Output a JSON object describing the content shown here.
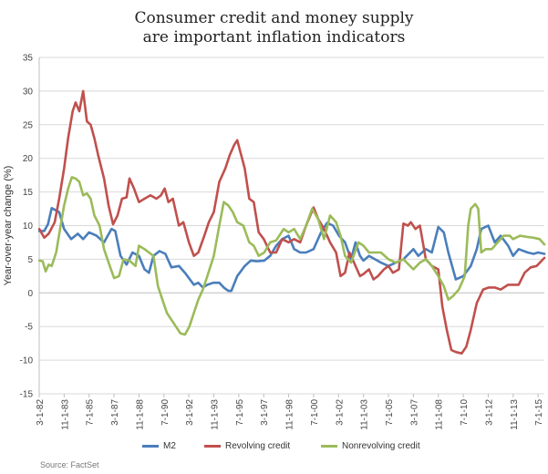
{
  "chart_data": {
    "type": "line",
    "title": [
      "Consumer credit and money supply",
      "are important inflation indicators"
    ],
    "ylabel": "Year-over-year change (%)",
    "xlabel": "",
    "ylim": [
      -15,
      35
    ],
    "yticks": [
      -15,
      -10,
      -5,
      0,
      5,
      10,
      15,
      20,
      25,
      30,
      35
    ],
    "x_tick_labels": [
      "3-1-82",
      "11-1-83",
      "7-1-85",
      "3-1-87",
      "11-1-88",
      "7-1-90",
      "3-1-92",
      "11-1-93",
      "7-1-95",
      "3-1-97",
      "11-1-98",
      "7-1-00",
      "3-1-02",
      "11-1-03",
      "7-1-05",
      "3-1-07",
      "11-1-08",
      "7-1-10",
      "3-1-12",
      "11-1-13",
      "7-1-15"
    ],
    "x_range": [
      "3-1-82",
      "12-1-15"
    ],
    "grid": "horizontal",
    "legend_position": "bottom",
    "source": "Source: FactSet",
    "series": [
      {
        "name": "M2",
        "color": "#4a7ebb",
        "points": [
          [
            1982.17,
            9.2
          ],
          [
            1982.5,
            9.2
          ],
          [
            1982.75,
            10.2
          ],
          [
            1983.0,
            12.6
          ],
          [
            1983.5,
            12.0
          ],
          [
            1983.83,
            9.5
          ],
          [
            1984.3,
            8.0
          ],
          [
            1984.75,
            8.8
          ],
          [
            1985.1,
            8.0
          ],
          [
            1985.5,
            9.0
          ],
          [
            1986.0,
            8.5
          ],
          [
            1986.5,
            7.5
          ],
          [
            1987.0,
            9.5
          ],
          [
            1987.25,
            9.2
          ],
          [
            1987.6,
            5.5
          ],
          [
            1988.0,
            4.2
          ],
          [
            1988.4,
            6.0
          ],
          [
            1988.83,
            5.5
          ],
          [
            1989.2,
            3.5
          ],
          [
            1989.5,
            3.0
          ],
          [
            1989.8,
            5.5
          ],
          [
            1990.2,
            6.2
          ],
          [
            1990.6,
            5.8
          ],
          [
            1991.0,
            3.8
          ],
          [
            1991.5,
            4.0
          ],
          [
            1991.9,
            3.0
          ],
          [
            1992.5,
            1.2
          ],
          [
            1992.8,
            1.5
          ],
          [
            1993.1,
            0.8
          ],
          [
            1993.4,
            1.2
          ],
          [
            1993.8,
            1.5
          ],
          [
            1994.2,
            1.5
          ],
          [
            1994.5,
            0.8
          ],
          [
            1994.8,
            0.3
          ],
          [
            1995.0,
            0.3
          ],
          [
            1995.4,
            2.5
          ],
          [
            1995.9,
            4.0
          ],
          [
            1996.3,
            4.8
          ],
          [
            1996.7,
            4.7
          ],
          [
            1997.2,
            4.8
          ],
          [
            1997.6,
            5.5
          ],
          [
            1998.0,
            7.0
          ],
          [
            1998.4,
            8.0
          ],
          [
            1998.83,
            8.5
          ],
          [
            1999.2,
            6.5
          ],
          [
            1999.6,
            6.0
          ],
          [
            2000.0,
            6.0
          ],
          [
            2000.5,
            6.5
          ],
          [
            2001.0,
            9.0
          ],
          [
            2001.4,
            10.4
          ],
          [
            2001.8,
            10.0
          ],
          [
            2002.2,
            8.5
          ],
          [
            2002.6,
            7.5
          ],
          [
            2003.0,
            5.0
          ],
          [
            2003.3,
            7.5
          ],
          [
            2003.6,
            5.5
          ],
          [
            2003.83,
            4.8
          ],
          [
            2004.2,
            5.5
          ],
          [
            2004.6,
            5.0
          ],
          [
            2005.0,
            4.5
          ],
          [
            2005.5,
            4.0
          ],
          [
            2006.0,
            4.5
          ],
          [
            2006.5,
            5.0
          ],
          [
            2007.17,
            6.5
          ],
          [
            2007.5,
            5.5
          ],
          [
            2008.0,
            6.5
          ],
          [
            2008.4,
            6.0
          ],
          [
            2008.83,
            9.8
          ],
          [
            2009.2,
            9.0
          ],
          [
            2009.5,
            6.0
          ],
          [
            2010.0,
            2.0
          ],
          [
            2010.5,
            2.5
          ],
          [
            2011.0,
            4.0
          ],
          [
            2011.4,
            6.5
          ],
          [
            2011.7,
            9.5
          ],
          [
            2012.17,
            10.0
          ],
          [
            2012.6,
            7.5
          ],
          [
            2013.0,
            8.5
          ],
          [
            2013.5,
            7.0
          ],
          [
            2013.83,
            5.5
          ],
          [
            2014.2,
            6.5
          ],
          [
            2014.8,
            6.0
          ],
          [
            2015.2,
            5.8
          ],
          [
            2015.5,
            6.0
          ],
          [
            2015.92,
            5.8
          ]
        ]
      },
      {
        "name": "Revolving credit",
        "color": "#c0504d",
        "points": [
          [
            1982.17,
            9.5
          ],
          [
            1982.5,
            8.2
          ],
          [
            1982.8,
            8.8
          ],
          [
            1983.2,
            10.5
          ],
          [
            1983.5,
            14.0
          ],
          [
            1983.83,
            18.5
          ],
          [
            1984.1,
            23.0
          ],
          [
            1984.4,
            27.0
          ],
          [
            1984.6,
            28.3
          ],
          [
            1984.85,
            27.0
          ],
          [
            1985.1,
            30.0
          ],
          [
            1985.35,
            25.5
          ],
          [
            1985.6,
            25.0
          ],
          [
            1985.85,
            23.0
          ],
          [
            1986.1,
            20.5
          ],
          [
            1986.5,
            17.0
          ],
          [
            1986.8,
            13.0
          ],
          [
            1987.1,
            10.2
          ],
          [
            1987.4,
            11.5
          ],
          [
            1987.7,
            14.0
          ],
          [
            1988.0,
            14.2
          ],
          [
            1988.2,
            17.0
          ],
          [
            1988.5,
            15.5
          ],
          [
            1988.83,
            13.5
          ],
          [
            1989.2,
            14.0
          ],
          [
            1989.6,
            14.5
          ],
          [
            1990.0,
            14.0
          ],
          [
            1990.3,
            14.5
          ],
          [
            1990.55,
            15.5
          ],
          [
            1990.8,
            13.5
          ],
          [
            1991.1,
            14.0
          ],
          [
            1991.5,
            10.0
          ],
          [
            1991.8,
            10.5
          ],
          [
            1992.17,
            7.5
          ],
          [
            1992.5,
            5.5
          ],
          [
            1992.8,
            6.0
          ],
          [
            1993.2,
            8.5
          ],
          [
            1993.5,
            10.5
          ],
          [
            1993.83,
            12.0
          ],
          [
            1994.2,
            16.5
          ],
          [
            1994.6,
            18.5
          ],
          [
            1994.9,
            20.5
          ],
          [
            1995.2,
            22.0
          ],
          [
            1995.4,
            22.7
          ],
          [
            1995.6,
            21.0
          ],
          [
            1995.9,
            18.5
          ],
          [
            1996.2,
            14.0
          ],
          [
            1996.5,
            13.5
          ],
          [
            1996.83,
            9.0
          ],
          [
            1997.17,
            8.0
          ],
          [
            1997.6,
            6.0
          ],
          [
            1998.0,
            6.0
          ],
          [
            1998.4,
            8.0
          ],
          [
            1998.83,
            7.5
          ],
          [
            1999.2,
            8.0
          ],
          [
            1999.6,
            7.5
          ],
          [
            2000.0,
            10.0
          ],
          [
            2000.5,
            12.7
          ],
          [
            2000.8,
            11.0
          ],
          [
            2001.2,
            9.5
          ],
          [
            2001.6,
            7.5
          ],
          [
            2002.0,
            6.0
          ],
          [
            2002.3,
            2.5
          ],
          [
            2002.6,
            3.0
          ],
          [
            2002.9,
            6.0
          ],
          [
            2003.2,
            4.5
          ],
          [
            2003.6,
            2.5
          ],
          [
            2003.83,
            2.8
          ],
          [
            2004.2,
            3.5
          ],
          [
            2004.5,
            2.0
          ],
          [
            2004.8,
            2.5
          ],
          [
            2005.2,
            3.5
          ],
          [
            2005.5,
            4.0
          ],
          [
            2005.8,
            3.0
          ],
          [
            2006.2,
            3.5
          ],
          [
            2006.5,
            10.3
          ],
          [
            2006.8,
            10.0
          ],
          [
            2007.0,
            10.5
          ],
          [
            2007.3,
            9.5
          ],
          [
            2007.6,
            10.0
          ],
          [
            2008.0,
            5.0
          ],
          [
            2008.4,
            4.0
          ],
          [
            2008.83,
            3.5
          ],
          [
            2009.1,
            -2.0
          ],
          [
            2009.4,
            -5.5
          ],
          [
            2009.7,
            -8.5
          ],
          [
            2010.0,
            -8.8
          ],
          [
            2010.4,
            -9.0
          ],
          [
            2010.7,
            -8.0
          ],
          [
            2011.0,
            -5.5
          ],
          [
            2011.4,
            -1.5
          ],
          [
            2011.83,
            0.5
          ],
          [
            2012.2,
            0.8
          ],
          [
            2012.6,
            0.8
          ],
          [
            2013.0,
            0.5
          ],
          [
            2013.5,
            1.2
          ],
          [
            2013.83,
            1.2
          ],
          [
            2014.2,
            1.2
          ],
          [
            2014.6,
            3.0
          ],
          [
            2015.0,
            3.8
          ],
          [
            2015.4,
            4.0
          ],
          [
            2015.92,
            5.2
          ]
        ]
      },
      {
        "name": "Nonrevolving credit",
        "color": "#9bbb59",
        "points": [
          [
            1982.17,
            4.8
          ],
          [
            1982.4,
            4.7
          ],
          [
            1982.6,
            3.2
          ],
          [
            1982.8,
            4.2
          ],
          [
            1983.0,
            4.0
          ],
          [
            1983.3,
            6.0
          ],
          [
            1983.6,
            10.0
          ],
          [
            1983.83,
            13.0
          ],
          [
            1984.1,
            15.5
          ],
          [
            1984.35,
            17.2
          ],
          [
            1984.6,
            17.0
          ],
          [
            1984.85,
            16.5
          ],
          [
            1985.1,
            14.5
          ],
          [
            1985.35,
            14.8
          ],
          [
            1985.6,
            14.0
          ],
          [
            1985.85,
            11.5
          ],
          [
            1986.2,
            10.0
          ],
          [
            1986.5,
            6.5
          ],
          [
            1986.8,
            4.5
          ],
          [
            1987.17,
            2.2
          ],
          [
            1987.5,
            2.5
          ],
          [
            1987.8,
            5.0
          ],
          [
            1988.2,
            4.8
          ],
          [
            1988.6,
            4.0
          ],
          [
            1988.83,
            7.0
          ],
          [
            1989.2,
            6.5
          ],
          [
            1989.5,
            6.0
          ],
          [
            1989.8,
            5.5
          ],
          [
            1990.1,
            1.0
          ],
          [
            1990.4,
            -1.0
          ],
          [
            1990.7,
            -3.0
          ],
          [
            1991.0,
            -4.0
          ],
          [
            1991.3,
            -5.0
          ],
          [
            1991.6,
            -6.0
          ],
          [
            1991.9,
            -6.2
          ],
          [
            1992.2,
            -5.0
          ],
          [
            1992.5,
            -3.0
          ],
          [
            1992.8,
            -1.0
          ],
          [
            1993.1,
            0.5
          ],
          [
            1993.4,
            2.5
          ],
          [
            1993.83,
            5.5
          ],
          [
            1994.2,
            10.0
          ],
          [
            1994.5,
            13.5
          ],
          [
            1994.8,
            13.0
          ],
          [
            1995.1,
            12.0
          ],
          [
            1995.4,
            10.5
          ],
          [
            1995.8,
            10.0
          ],
          [
            1996.2,
            7.5
          ],
          [
            1996.5,
            7.0
          ],
          [
            1996.83,
            5.5
          ],
          [
            1997.2,
            6.0
          ],
          [
            1997.6,
            7.5
          ],
          [
            1998.0,
            7.8
          ],
          [
            1998.5,
            9.5
          ],
          [
            1998.83,
            9.0
          ],
          [
            1999.2,
            9.5
          ],
          [
            1999.6,
            8.0
          ],
          [
            2000.0,
            10.0
          ],
          [
            2000.4,
            12.5
          ],
          [
            2000.8,
            11.0
          ],
          [
            2001.2,
            8.0
          ],
          [
            2001.6,
            11.5
          ],
          [
            2002.0,
            10.5
          ],
          [
            2002.3,
            8.5
          ],
          [
            2002.6,
            5.5
          ],
          [
            2003.0,
            4.5
          ],
          [
            2003.5,
            7.5
          ],
          [
            2003.83,
            7.0
          ],
          [
            2004.2,
            6.0
          ],
          [
            2004.6,
            6.0
          ],
          [
            2005.0,
            6.0
          ],
          [
            2005.5,
            5.0
          ],
          [
            2006.0,
            4.5
          ],
          [
            2006.5,
            5.0
          ],
          [
            2007.17,
            3.5
          ],
          [
            2007.6,
            4.5
          ],
          [
            2008.0,
            5.0
          ],
          [
            2008.4,
            4.0
          ],
          [
            2008.83,
            2.5
          ],
          [
            2009.2,
            1.0
          ],
          [
            2009.5,
            -1.0
          ],
          [
            2009.8,
            -0.5
          ],
          [
            2010.2,
            0.5
          ],
          [
            2010.6,
            2.5
          ],
          [
            2010.83,
            10.0
          ],
          [
            2011.0,
            12.5
          ],
          [
            2011.3,
            13.2
          ],
          [
            2011.5,
            12.5
          ],
          [
            2011.7,
            6.0
          ],
          [
            2012.0,
            6.5
          ],
          [
            2012.4,
            6.5
          ],
          [
            2012.8,
            7.5
          ],
          [
            2013.2,
            8.5
          ],
          [
            2013.6,
            8.5
          ],
          [
            2013.83,
            8.0
          ],
          [
            2014.3,
            8.5
          ],
          [
            2014.8,
            8.3
          ],
          [
            2015.2,
            8.2
          ],
          [
            2015.6,
            8.0
          ],
          [
            2015.92,
            7.2
          ]
        ]
      }
    ]
  }
}
